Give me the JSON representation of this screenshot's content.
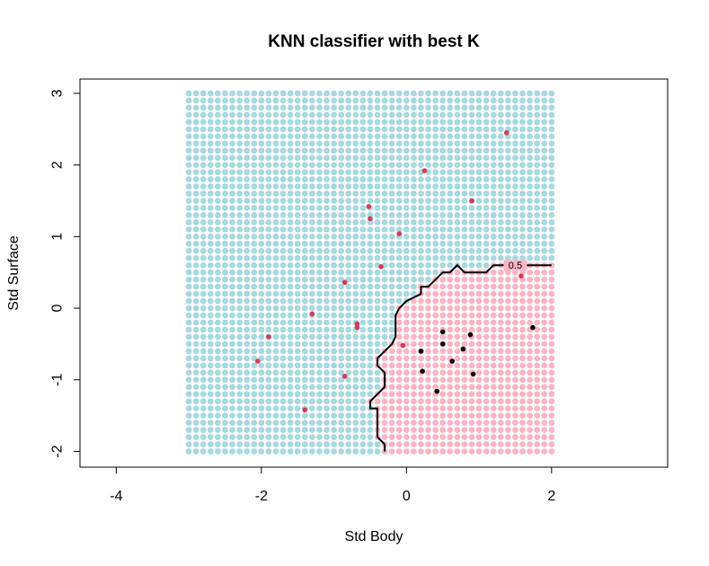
{
  "chart_data": {
    "type": "scatter",
    "title": "KNN classifier with best K",
    "xlabel": "Std Body",
    "ylabel": "Std Surface",
    "xlim": [
      -4.5,
      3.6
    ],
    "ylim": [
      -2.22,
      3.2
    ],
    "xticks": [
      -4,
      -2,
      0,
      2
    ],
    "yticks": [
      -2,
      -1,
      0,
      1,
      2,
      3
    ],
    "grid": {
      "x_range": [
        -3,
        2
      ],
      "y_range": [
        -2,
        3
      ],
      "step": 0.1,
      "colors": {
        "class_0": "#a8d8e0",
        "class_1": "#fbb6c4"
      }
    },
    "decision_boundary": {
      "label": "0.5",
      "points": [
        [
          -0.3,
          -2.0
        ],
        [
          -0.3,
          -1.9
        ],
        [
          -0.4,
          -1.8
        ],
        [
          -0.4,
          -1.4
        ],
        [
          -0.5,
          -1.4
        ],
        [
          -0.5,
          -1.3
        ],
        [
          -0.4,
          -1.2
        ],
        [
          -0.3,
          -1.1
        ],
        [
          -0.3,
          -0.9
        ],
        [
          -0.4,
          -0.8
        ],
        [
          -0.4,
          -0.7
        ],
        [
          -0.3,
          -0.6
        ],
        [
          -0.2,
          -0.5
        ],
        [
          -0.15,
          -0.4
        ],
        [
          -0.15,
          -0.1
        ],
        [
          -0.1,
          0.0
        ],
        [
          0.0,
          0.1
        ],
        [
          0.1,
          0.15
        ],
        [
          0.2,
          0.2
        ],
        [
          0.2,
          0.3
        ],
        [
          0.3,
          0.3
        ],
        [
          0.4,
          0.4
        ],
        [
          0.5,
          0.5
        ],
        [
          0.6,
          0.5
        ],
        [
          0.7,
          0.6
        ],
        [
          0.8,
          0.5
        ],
        [
          1.1,
          0.5
        ],
        [
          1.2,
          0.6
        ],
        [
          1.35,
          0.6
        ],
        [
          1.65,
          0.6
        ],
        [
          2.0,
          0.6
        ]
      ]
    },
    "series": [
      {
        "color": "#d43a5a",
        "points": [
          [
            1.38,
            2.45
          ],
          [
            0.25,
            1.92
          ],
          [
            0.9,
            1.5
          ],
          [
            -0.52,
            1.42
          ],
          [
            -0.5,
            1.25
          ],
          [
            -0.1,
            1.04
          ],
          [
            -0.35,
            0.58
          ],
          [
            1.58,
            0.45
          ],
          [
            -0.85,
            0.36
          ],
          [
            -1.3,
            -0.08
          ],
          [
            -0.68,
            -0.22
          ],
          [
            -0.68,
            -0.27
          ],
          [
            -1.9,
            -0.4
          ],
          [
            -0.05,
            -0.52
          ],
          [
            -2.05,
            -0.74
          ],
          [
            -0.85,
            -0.95
          ],
          [
            -1.4,
            -1.42
          ]
        ]
      },
      {
        "color": "#000000",
        "points": [
          [
            0.5,
            -0.33
          ],
          [
            0.88,
            -0.37
          ],
          [
            1.74,
            -0.27
          ],
          [
            0.5,
            -0.5
          ],
          [
            0.78,
            -0.57
          ],
          [
            0.2,
            -0.6
          ],
          [
            0.63,
            -0.74
          ],
          [
            0.22,
            -0.88
          ],
          [
            0.92,
            -0.92
          ],
          [
            0.42,
            -1.16
          ]
        ]
      }
    ]
  }
}
